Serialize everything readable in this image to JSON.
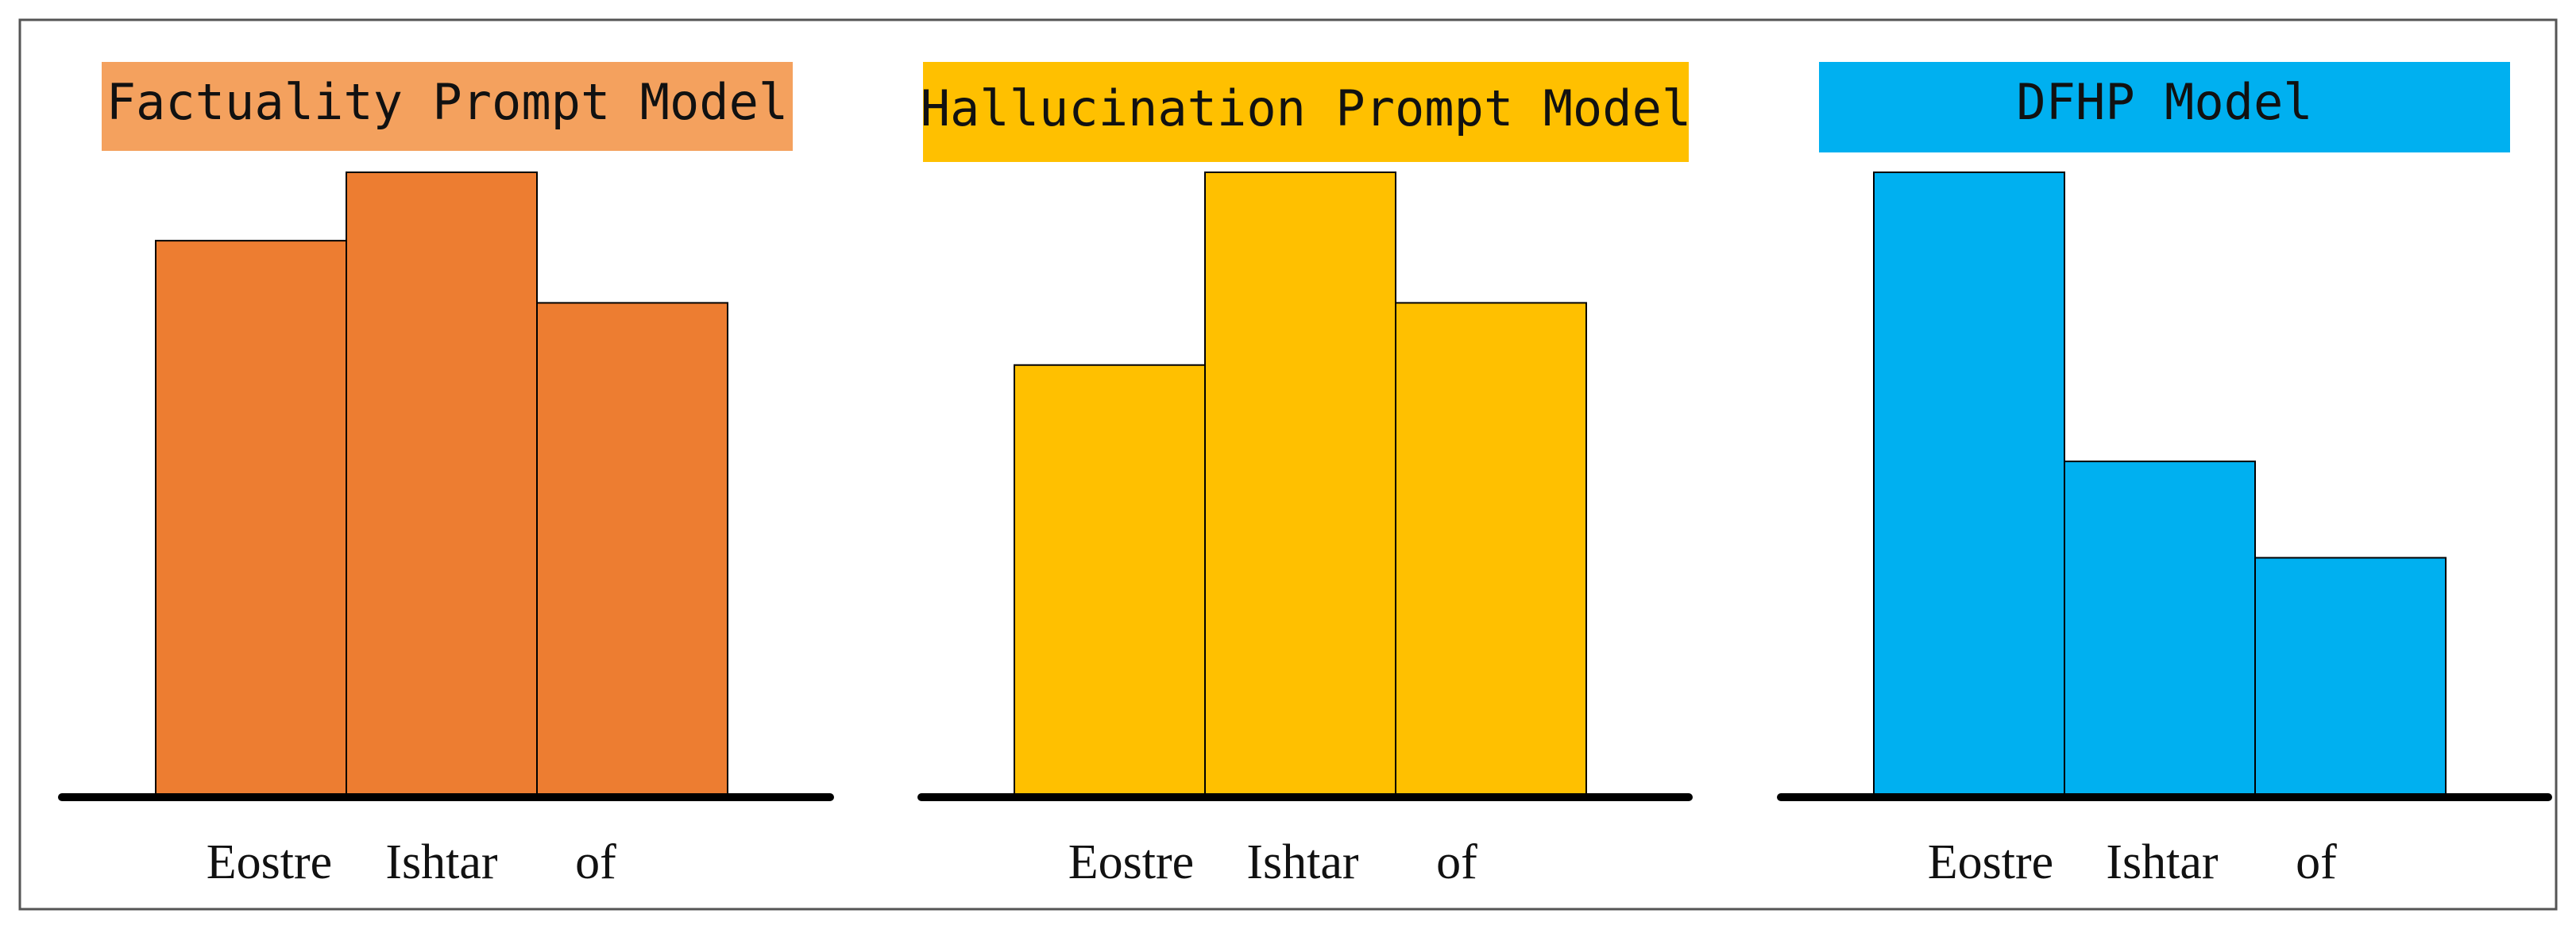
{
  "chart_data": [
    {
      "type": "bar",
      "title": "Factuality Prompt Model",
      "title_color": "#F4A15E",
      "bar_color": "#ED7D31",
      "categories": [
        "Eostre",
        "Ishtar",
        "of"
      ],
      "values": [
        0.89,
        1.0,
        0.79
      ],
      "ylim": [
        0,
        1
      ],
      "grid": false
    },
    {
      "type": "bar",
      "title": "Hallucination Prompt Model",
      "title_color": "#FFC000",
      "bar_color": "#FFC000",
      "categories": [
        "Eostre",
        "Ishtar",
        "of"
      ],
      "values": [
        0.69,
        1.0,
        0.79
      ],
      "ylim": [
        0,
        1
      ],
      "grid": false
    },
    {
      "type": "bar",
      "title": "DFHP Model",
      "title_color": "#00B0F0",
      "bar_color": "#00B0F0",
      "categories": [
        "Eostre",
        "Ishtar",
        "of"
      ],
      "values": [
        1.0,
        0.535,
        0.38
      ],
      "ylim": [
        0,
        1
      ],
      "grid": false
    }
  ]
}
